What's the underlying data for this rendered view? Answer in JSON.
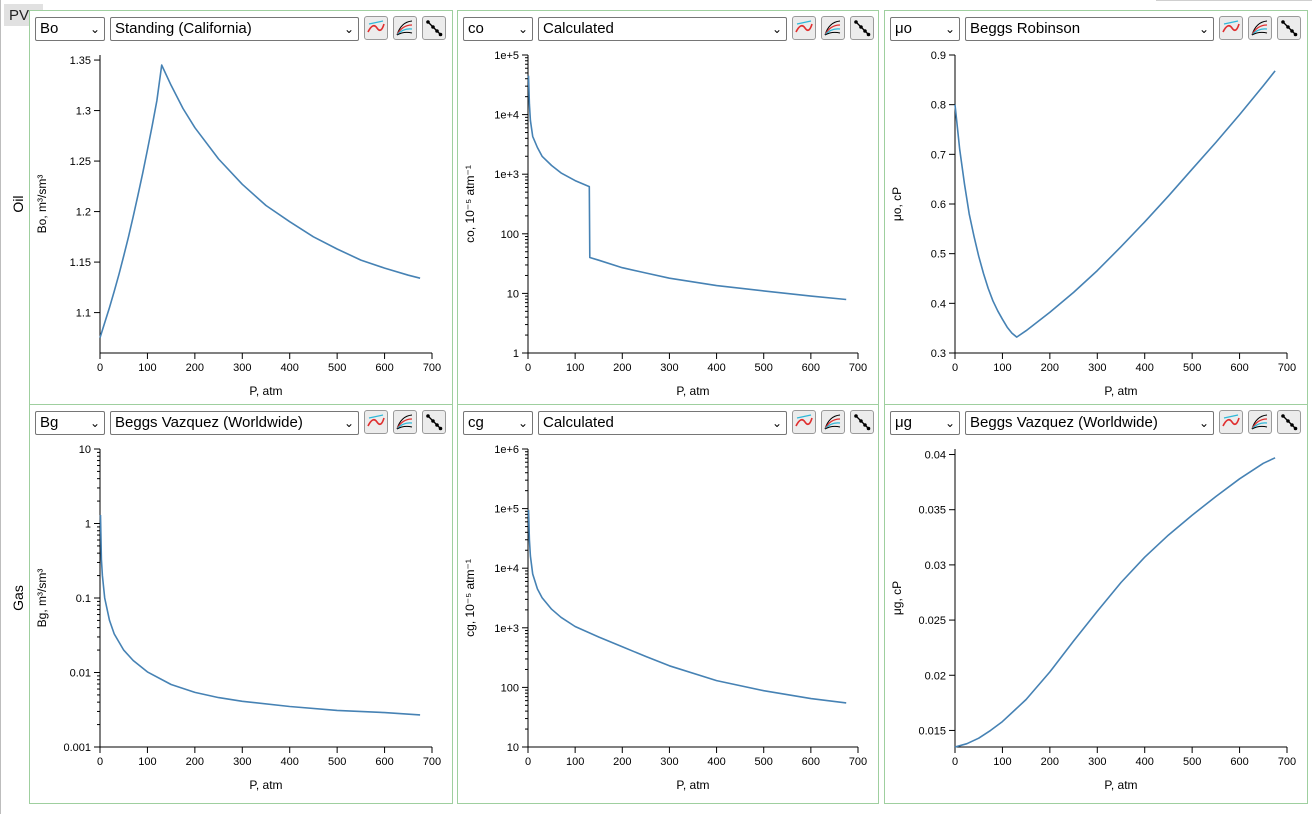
{
  "app": {
    "tab_label": "PVT"
  },
  "rows": [
    {
      "label": "Oil"
    },
    {
      "label": "Gas"
    }
  ],
  "panels": [
    {
      "param": "Bo",
      "method": "Standing (California)",
      "chart_data": {
        "type": "line",
        "scale": "linear",
        "xlabel": "P, atm",
        "ylabel": "Bo, m³/sm³",
        "xlim": [
          0,
          700
        ],
        "ylim": [
          1.06,
          1.355
        ],
        "xticks": [
          0,
          100,
          200,
          300,
          400,
          500,
          600,
          700
        ],
        "yticks": [
          1.1,
          1.15,
          1.2,
          1.25,
          1.3,
          1.35
        ],
        "ytick_labels": [
          "1.1",
          "1.15",
          "1.2",
          "1.25",
          "1.3",
          "1.35"
        ],
        "series": [
          {
            "color": "#4682b4",
            "x": [
              0,
              10,
              20,
              30,
              40,
              50,
              60,
              70,
              80,
              90,
              100,
              110,
              120,
              130,
              150,
              175,
              200,
              250,
              300,
              350,
              400,
              450,
              500,
              550,
              600,
              650,
              675
            ],
            "y": [
              1.075,
              1.09,
              1.105,
              1.121,
              1.138,
              1.156,
              1.175,
              1.195,
              1.216,
              1.238,
              1.261,
              1.285,
              1.31,
              1.345,
              1.325,
              1.302,
              1.283,
              1.252,
              1.227,
              1.206,
              1.19,
              1.175,
              1.163,
              1.152,
              1.144,
              1.137,
              1.134
            ]
          }
        ]
      }
    },
    {
      "param": "co",
      "method": "Calculated",
      "chart_data": {
        "type": "line",
        "scale": "log",
        "xlabel": "P, atm",
        "ylabel": "co, 10⁻⁵ atm⁻¹",
        "xlim": [
          0,
          700
        ],
        "ylim": [
          1,
          100000
        ],
        "xticks": [
          0,
          100,
          200,
          300,
          400,
          500,
          600,
          700
        ],
        "yticks": [
          1,
          10,
          100,
          1000,
          10000,
          100000
        ],
        "ytick_labels": [
          "1",
          "10",
          "100",
          "1e+3",
          "1e+4",
          "1e+5"
        ],
        "series": [
          {
            "color": "#4682b4",
            "x": [
              1,
              3,
              5,
              10,
              20,
              30,
              50,
              70,
              100,
              130,
              131,
              150,
              200,
              250,
              300,
              400,
              500,
              600,
              675
            ],
            "y": [
              45000,
              15000,
              8000,
              4300,
              2800,
              2000,
              1400,
              1050,
              780,
              620,
              40,
              36,
              27,
              22,
              18,
              13.5,
              11,
              9,
              7.9
            ]
          }
        ]
      }
    },
    {
      "param": "μo",
      "method": "Beggs Robinson",
      "chart_data": {
        "type": "line",
        "scale": "linear",
        "xlabel": "P, atm",
        "ylabel": "μo, cP",
        "xlim": [
          0,
          700
        ],
        "ylim": [
          0.3,
          0.9
        ],
        "xticks": [
          0,
          100,
          200,
          300,
          400,
          500,
          600,
          700
        ],
        "yticks": [
          0.3,
          0.4,
          0.5,
          0.6,
          0.7,
          0.8,
          0.9
        ],
        "ytick_labels": [
          "0.3",
          "0.4",
          "0.5",
          "0.6",
          "0.7",
          "0.8",
          "0.9"
        ],
        "series": [
          {
            "color": "#4682b4",
            "x": [
              0,
              10,
              20,
              30,
              40,
              50,
              60,
              70,
              80,
              90,
              100,
              110,
              120,
              130,
              150,
              200,
              250,
              300,
              350,
              400,
              450,
              500,
              550,
              600,
              650,
              675
            ],
            "y": [
              0.8,
              0.71,
              0.64,
              0.58,
              0.535,
              0.495,
              0.46,
              0.43,
              0.405,
              0.385,
              0.368,
              0.352,
              0.34,
              0.332,
              0.345,
              0.382,
              0.422,
              0.466,
              0.514,
              0.564,
              0.616,
              0.67,
              0.724,
              0.78,
              0.838,
              0.868
            ]
          }
        ]
      }
    },
    {
      "param": "Bg",
      "method": "Beggs Vazquez (Worldwide)",
      "chart_data": {
        "type": "line",
        "scale": "log",
        "xlabel": "P, atm",
        "ylabel": "Bg, m³/sm³",
        "xlim": [
          0,
          700
        ],
        "ylim": [
          0.001,
          10
        ],
        "xticks": [
          0,
          100,
          200,
          300,
          400,
          500,
          600,
          700
        ],
        "yticks": [
          0.001,
          0.01,
          0.1,
          1,
          10
        ],
        "ytick_labels": [
          "0.001",
          "0.01",
          "0.1",
          "1",
          "10"
        ],
        "series": [
          {
            "color": "#4682b4",
            "x": [
              1,
              3,
              5,
              10,
              20,
              30,
              50,
              70,
              100,
              150,
              200,
              250,
              300,
              400,
              500,
              600,
              675
            ],
            "y": [
              1.3,
              0.33,
              0.2,
              0.1,
              0.05,
              0.033,
              0.02,
              0.0145,
              0.0102,
              0.0069,
              0.0054,
              0.0046,
              0.0041,
              0.0035,
              0.0031,
              0.0029,
              0.0027
            ]
          }
        ]
      }
    },
    {
      "param": "cg",
      "method": "Calculated",
      "chart_data": {
        "type": "line",
        "scale": "log",
        "xlabel": "P, atm",
        "ylabel": "cg, 10⁻⁵ atm⁻¹",
        "xlim": [
          0,
          700
        ],
        "ylim": [
          10,
          1000000
        ],
        "xticks": [
          0,
          100,
          200,
          300,
          400,
          500,
          600,
          700
        ],
        "yticks": [
          10,
          100,
          1000,
          10000,
          100000,
          1000000
        ],
        "ytick_labels": [
          "10",
          "100",
          "1e+3",
          "1e+4",
          "1e+5",
          "1e+6"
        ],
        "series": [
          {
            "color": "#4682b4",
            "x": [
              1,
              3,
              5,
              10,
              20,
              30,
              50,
              70,
              100,
              150,
              200,
              250,
              300,
              400,
              500,
              600,
              675
            ],
            "y": [
              95000,
              30000,
              16000,
              8000,
              4500,
              3200,
              2050,
              1500,
              1050,
              700,
              480,
              330,
              230,
              130,
              88,
              65,
              55
            ]
          }
        ]
      }
    },
    {
      "param": "μg",
      "method": "Beggs Vazquez (Worldwide)",
      "chart_data": {
        "type": "line",
        "scale": "linear",
        "xlabel": "P, atm",
        "ylabel": "μg, cP",
        "xlim": [
          0,
          700
        ],
        "ylim": [
          0.0135,
          0.0405
        ],
        "xticks": [
          0,
          100,
          200,
          300,
          400,
          500,
          600,
          700
        ],
        "yticks": [
          0.015,
          0.02,
          0.025,
          0.03,
          0.035,
          0.04
        ],
        "ytick_labels": [
          "0.015",
          "0.02",
          "0.025",
          "0.03",
          "0.035",
          "0.04"
        ],
        "series": [
          {
            "color": "#4682b4",
            "x": [
              0,
              25,
              50,
              75,
              100,
              150,
              200,
              250,
              300,
              350,
              400,
              450,
              500,
              550,
              600,
              650,
              675
            ],
            "y": [
              0.0135,
              0.0138,
              0.0143,
              0.015,
              0.0158,
              0.0178,
              0.0203,
              0.0231,
              0.0258,
              0.0284,
              0.0307,
              0.0327,
              0.0345,
              0.0362,
              0.0378,
              0.0392,
              0.0397
            ]
          }
        ]
      }
    }
  ]
}
